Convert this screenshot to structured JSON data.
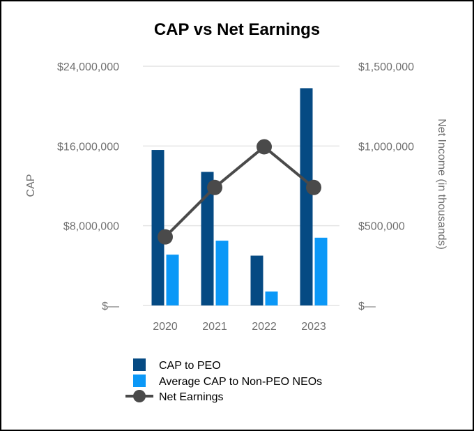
{
  "chart_data": {
    "type": "bar",
    "title": "CAP vs Net Earnings",
    "categories": [
      "2020",
      "2021",
      "2022",
      "2023"
    ],
    "ylabel": "CAP",
    "ylabel_right": "Net Income (in thousands)",
    "ylim": [
      0,
      24000000
    ],
    "ylim_right": [
      0,
      1500000
    ],
    "yticks": [
      {
        "value": 0,
        "label": "$—"
      },
      {
        "value": 8000000,
        "label": "$8,000,000"
      },
      {
        "value": 16000000,
        "label": "$16,000,000"
      },
      {
        "value": 24000000,
        "label": "$24,000,000"
      }
    ],
    "yticks_right": [
      {
        "value": 0,
        "label": "$—"
      },
      {
        "value": 500000,
        "label": "$500,000"
      },
      {
        "value": 1000000,
        "label": "$1,000,000"
      },
      {
        "value": 1500000,
        "label": "$1,500,000"
      }
    ],
    "grid": true,
    "series": [
      {
        "name": "CAP to PEO",
        "type": "bar",
        "axis": "left",
        "color": "#054a83",
        "values": [
          15600000,
          13400000,
          5000000,
          21800000
        ]
      },
      {
        "name": "Average CAP to Non-PEO NEOs",
        "type": "bar",
        "axis": "left",
        "color": "#0b98f7",
        "values": [
          5100000,
          6500000,
          1400000,
          6800000
        ]
      },
      {
        "name": "Net Earnings",
        "type": "line",
        "axis": "right",
        "color": "#4a4a4a",
        "values": [
          430000,
          740000,
          995000,
          740000
        ]
      }
    ],
    "legend_position": "bottom"
  }
}
